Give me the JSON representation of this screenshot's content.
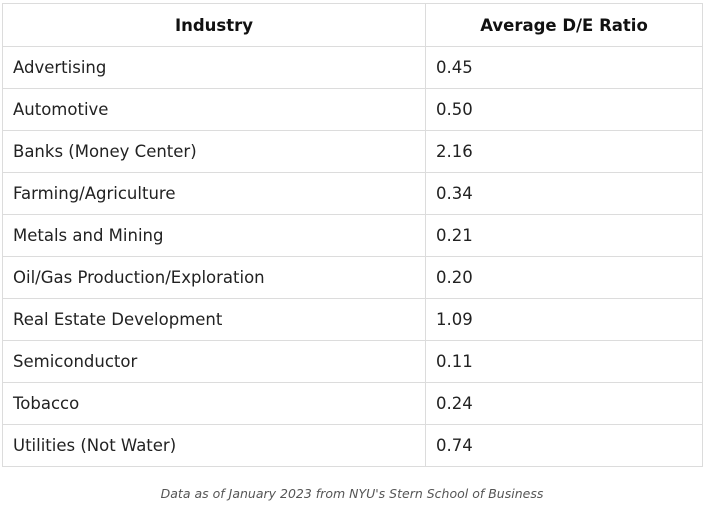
{
  "table": {
    "headers": [
      "Industry",
      "Average D/E Ratio"
    ],
    "rows": [
      [
        "Advertising",
        "0.45"
      ],
      [
        "Automotive",
        "0.50"
      ],
      [
        "Banks (Money Center)",
        "2.16"
      ],
      [
        "Farming/Agriculture",
        "0.34"
      ],
      [
        "Metals and Mining",
        "0.21"
      ],
      [
        "Oil/Gas Production/Exploration",
        "0.20"
      ],
      [
        "Real Estate Development",
        "1.09"
      ],
      [
        "Semiconductor",
        "0.11"
      ],
      [
        "Tobacco",
        "0.24"
      ],
      [
        "Utilities (Not Water)",
        "0.74"
      ]
    ]
  },
  "caption": "Data as of January 2023 from NYU's Stern School of Business"
}
